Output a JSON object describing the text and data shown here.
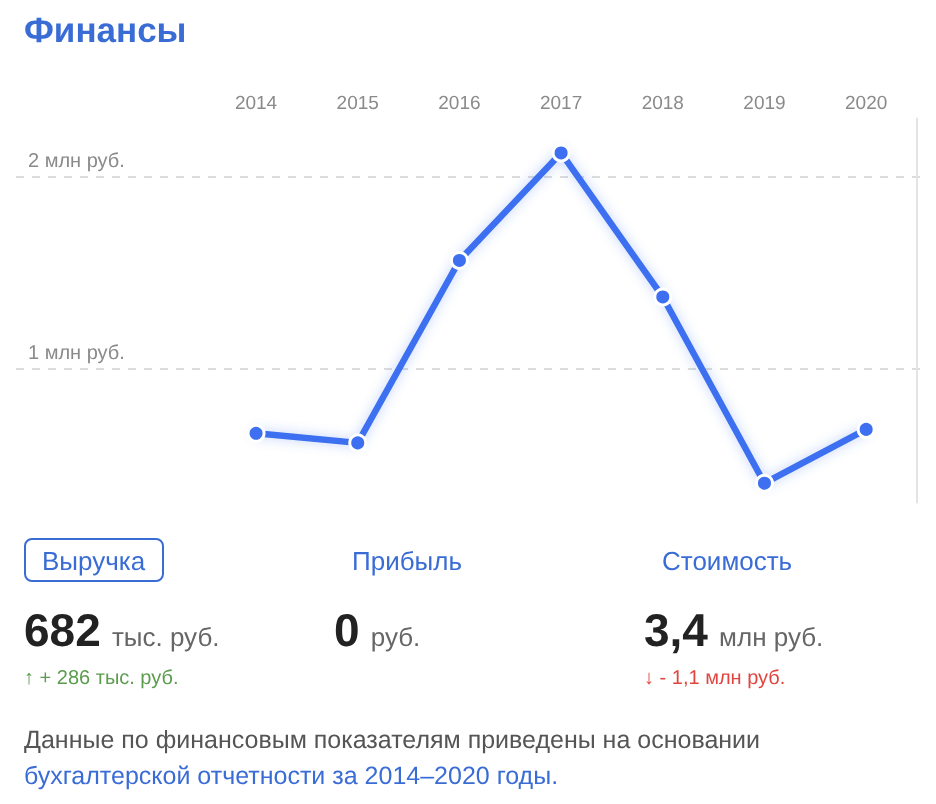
{
  "chart_data": [
    {
      "type": "line",
      "title": "Финансы",
      "categories": [
        "2014",
        "2015",
        "2016",
        "2017",
        "2018",
        "2019",
        "2020"
      ],
      "values": [
        0.66,
        0.61,
        1.56,
        2.12,
        1.37,
        0.4,
        0.68
      ],
      "color": "#3d6ff0",
      "ylim": [
        0.3,
        2.3
      ],
      "yticks": [
        {
          "value": 1,
          "label": "1 млн руб."
        },
        {
          "value": 2,
          "label": "2 млн руб."
        }
      ],
      "grid": "y",
      "marker": "circle"
    },
    {
      "type": "other",
      "categories": [
        "Выручка",
        "Прибыль",
        "Стоимость"
      ],
      "value_labels": [
        "682 тыс. руб.",
        "0 руб.",
        "3,4 млн руб."
      ],
      "annotations": [
        {
          "text": "↑ + 286 тыс. руб.",
          "x": "Выручка"
        },
        {
          "text": "↓ - 1,1 млн руб.",
          "x": "Стоимость"
        },
        "Данные по финансовым показателям приведены на основании",
        "бухгалтерской отчетности за 2014–2020 годы."
      ]
    }
  ]
}
